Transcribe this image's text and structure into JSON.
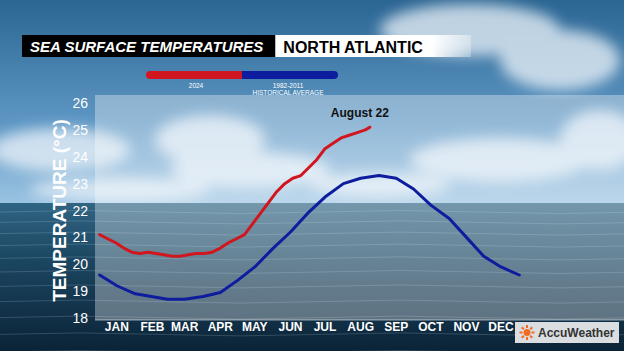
{
  "chart_data": {
    "type": "line",
    "title": "SEA SURFACE TEMPERATURES",
    "subtitle": "NORTH ATLANTIC",
    "y_label": "TEMPERATURE (°C)",
    "annotation": "August 22",
    "branding": "AccuWeather",
    "legend": "top-left",
    "grid": false,
    "xlim": [
      -4,
      456
    ],
    "xticks": [
      {
        "value": 15,
        "label": "JAN"
      },
      {
        "value": 46,
        "label": "FEB"
      },
      {
        "value": 74,
        "label": "MAR"
      },
      {
        "value": 105,
        "label": "APR"
      },
      {
        "value": 135,
        "label": "MAY"
      },
      {
        "value": 166,
        "label": "JUN"
      },
      {
        "value": 196,
        "label": "JUL"
      },
      {
        "value": 227,
        "label": "AUG"
      },
      {
        "value": 258,
        "label": "SEP"
      },
      {
        "value": 288,
        "label": "OCT"
      },
      {
        "value": 319,
        "label": "NOV"
      },
      {
        "value": 349,
        "label": "DEC"
      }
    ],
    "ylim": [
      18,
      26
    ],
    "yticks": [
      18,
      19,
      20,
      21,
      22,
      23,
      24,
      25,
      26
    ],
    "series": [
      {
        "name": "2024",
        "color": "#d0161f",
        "x": [
          0,
          7,
          14,
          21,
          28,
          35,
          42,
          49,
          56,
          63,
          70,
          77,
          84,
          91,
          98,
          105,
          112,
          119,
          126,
          133,
          140,
          147,
          154,
          161,
          168,
          175,
          182,
          189,
          196,
          203,
          210,
          217,
          224,
          231,
          235
        ],
        "values": [
          21.1,
          20.95,
          20.8,
          20.6,
          20.45,
          20.4,
          20.45,
          20.4,
          20.35,
          20.3,
          20.3,
          20.35,
          20.4,
          20.4,
          20.45,
          20.6,
          20.8,
          20.95,
          21.1,
          21.5,
          21.9,
          22.3,
          22.7,
          23.0,
          23.2,
          23.3,
          23.6,
          23.9,
          24.3,
          24.5,
          24.7,
          24.8,
          24.9,
          25.0,
          25.1
        ]
      },
      {
        "name": "1982-2011 HISTORICAL AVERAGE",
        "color": "#0e1c9e",
        "x": [
          0,
          15,
          31,
          45,
          59,
          74,
          90,
          105,
          120,
          135,
          151,
          166,
          181,
          196,
          212,
          227,
          243,
          258,
          273,
          288,
          304,
          319,
          334,
          349,
          365
        ],
        "values": [
          19.6,
          19.2,
          18.9,
          18.8,
          18.7,
          18.7,
          18.8,
          18.95,
          19.4,
          19.9,
          20.6,
          21.2,
          21.9,
          22.5,
          23.0,
          23.2,
          23.3,
          23.2,
          22.8,
          22.2,
          21.7,
          21.0,
          20.3,
          19.9,
          19.6
        ]
      }
    ]
  }
}
